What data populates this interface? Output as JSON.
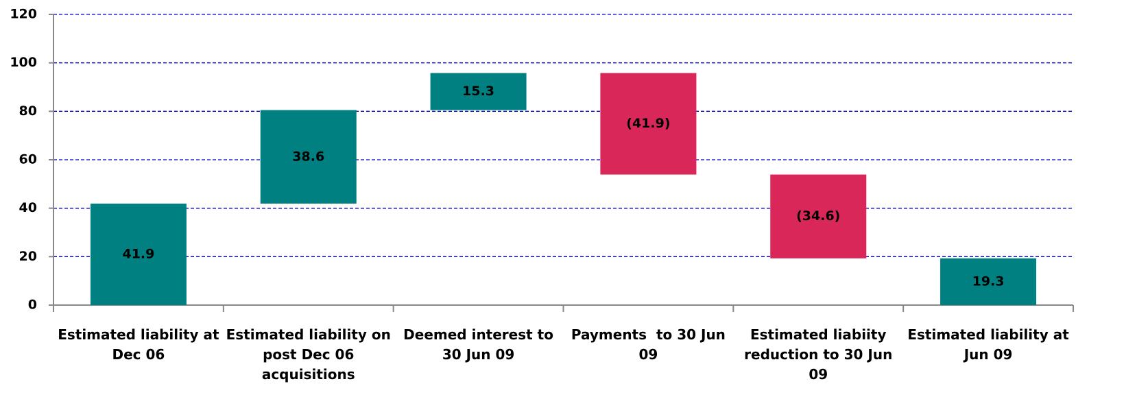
{
  "chart_data": {
    "type": "waterfall",
    "categories": [
      "Estimated liability at Dec 06",
      "Estimated liability on post Dec 06 acquisitions",
      "Deemed interest to 30 Jun 09",
      "Payments  to 30 Jun 09",
      "Estimated liabiity reduction to 30 Jun 09",
      "Estimated liability at Jun 09"
    ],
    "values": [
      41.9,
      38.6,
      15.3,
      -41.9,
      -34.6,
      19.3
    ],
    "value_labels": [
      "41.9",
      "38.6",
      "15.3",
      "(41.9)",
      "(34.6)",
      "19.3"
    ],
    "colors": [
      "#008080",
      "#008080",
      "#008080",
      "#d9275a",
      "#d9275a",
      "#008080"
    ],
    "ylim": [
      0,
      120
    ],
    "yticks": [
      0,
      20,
      40,
      60,
      80,
      100,
      120
    ],
    "grid": true
  }
}
